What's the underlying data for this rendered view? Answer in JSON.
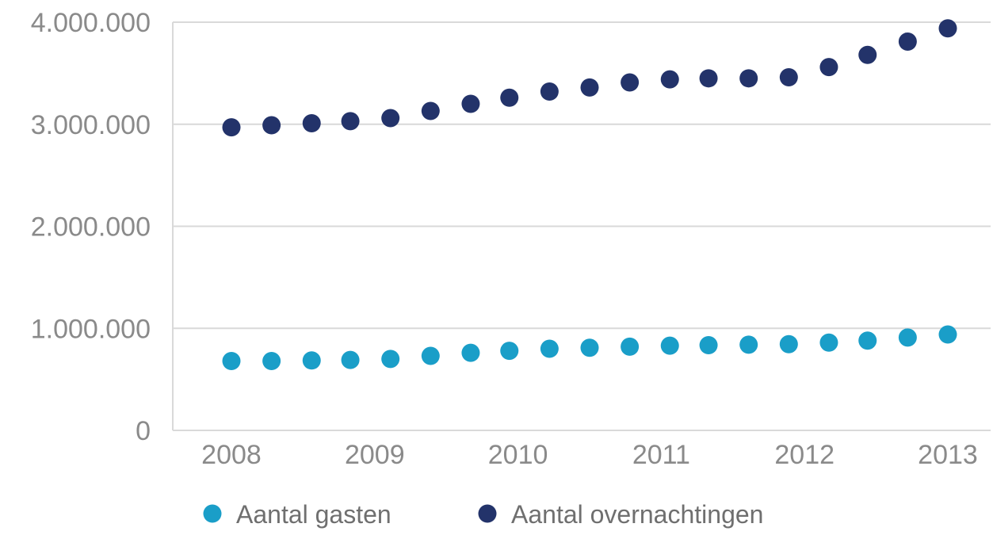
{
  "chart_data": {
    "type": "scatter",
    "x_ticks": [
      "2008",
      "2009",
      "2010",
      "2011",
      "2012",
      "2013"
    ],
    "y_ticks": [
      "0",
      "1.000.000",
      "2.000.000",
      "3.000.000",
      "4.000.000"
    ],
    "ylim": [
      0,
      4000000
    ],
    "xlim": [
      2008,
      2013
    ],
    "grid": "horizontal",
    "legend_position": "bottom-left",
    "x": [
      2008.0,
      2008.28,
      2008.56,
      2008.83,
      2009.11,
      2009.39,
      2009.67,
      2009.94,
      2010.22,
      2010.5,
      2010.78,
      2011.06,
      2011.33,
      2011.61,
      2011.89,
      2012.17,
      2012.44,
      2012.72,
      2013.0
    ],
    "series": [
      {
        "name": "Aantal gasten",
        "color": "#1a9ec8",
        "values": [
          680000,
          680000,
          685000,
          690000,
          700000,
          730000,
          760000,
          780000,
          800000,
          810000,
          820000,
          830000,
          835000,
          840000,
          845000,
          860000,
          880000,
          910000,
          940000
        ]
      },
      {
        "name": "Aantal overnachtingen",
        "color": "#23336a",
        "values": [
          2970000,
          2990000,
          3010000,
          3030000,
          3060000,
          3130000,
          3200000,
          3260000,
          3320000,
          3360000,
          3410000,
          3440000,
          3450000,
          3450000,
          3460000,
          3560000,
          3680000,
          3810000,
          3940000
        ]
      }
    ]
  }
}
